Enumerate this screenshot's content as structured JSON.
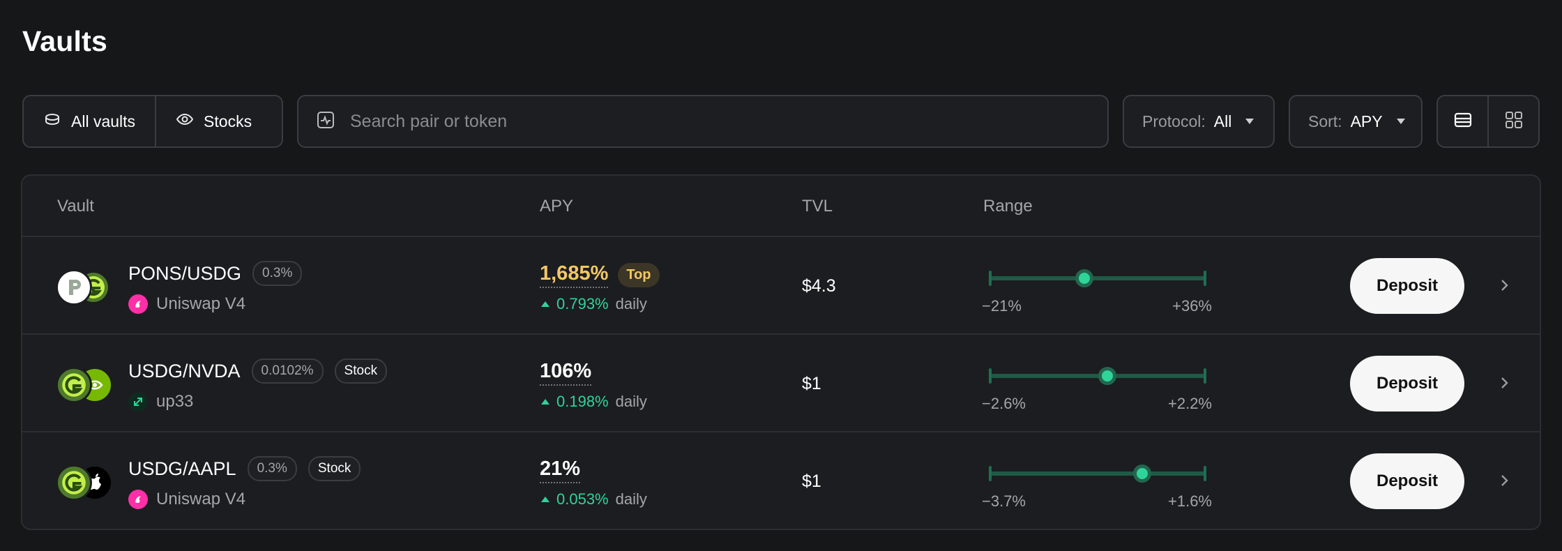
{
  "page": {
    "title": "Vaults"
  },
  "filters": {
    "all_vaults": "All vaults",
    "stocks": "Stocks",
    "search_placeholder": "Search pair or token",
    "protocol_label": "Protocol:",
    "protocol_value": "All",
    "sort_label": "Sort:",
    "sort_value": "APY"
  },
  "table": {
    "headers": {
      "vault": "Vault",
      "apy": "APY",
      "tvl": "TVL",
      "range": "Range"
    },
    "rows": [
      {
        "pair": "PONS/USDG",
        "fee": "0.3%",
        "stock_badge": "",
        "protocol": "Uniswap V4",
        "apy": "1,685%",
        "top_badge": "Top",
        "daily": "0.793%",
        "daily_label": "daily",
        "tvl": "$4.3",
        "range_low": "−21%",
        "range_high": "+36%",
        "range_position": 0.44,
        "deposit": "Deposit"
      },
      {
        "pair": "USDG/NVDA",
        "fee": "0.0102%",
        "stock_badge": "Stock",
        "protocol": "up33",
        "apy": "106%",
        "top_badge": "",
        "daily": "0.198%",
        "daily_label": "daily",
        "tvl": "$1",
        "range_low": "−2.6%",
        "range_high": "+2.2%",
        "range_position": 0.545,
        "deposit": "Deposit"
      },
      {
        "pair": "USDG/AAPL",
        "fee": "0.3%",
        "stock_badge": "Stock",
        "protocol": "Uniswap V4",
        "apy": "21%",
        "top_badge": "",
        "daily": "0.053%",
        "daily_label": "daily",
        "tvl": "$1",
        "range_low": "−3.7%",
        "range_high": "+1.6%",
        "range_position": 0.705,
        "deposit": "Deposit"
      }
    ]
  },
  "colors": {
    "accent_green": "#2fd49a",
    "top_gold": "#f3c865",
    "background": "#161719"
  }
}
